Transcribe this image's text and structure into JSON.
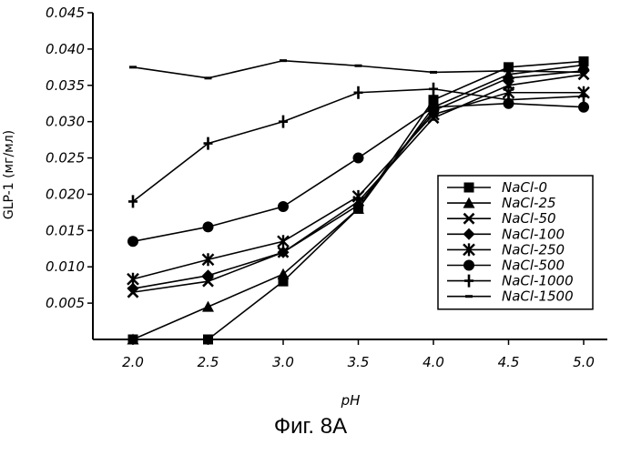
{
  "caption": "Фиг. 8A",
  "chart_data": {
    "type": "line",
    "xlabel": "pH",
    "ylabel": "GLP-1 (мг/мл)",
    "x": [
      2.0,
      2.5,
      3.0,
      3.5,
      4.0,
      4.5,
      5.0
    ],
    "x_tick_labels": [
      "2.0",
      "2.5",
      "3.0",
      "3.5",
      "4.0",
      "4.5",
      "5.0"
    ],
    "y_tick_labels": [
      "0.005",
      "0.010",
      "0.015",
      "0.020",
      "0.025",
      "0.030",
      "0.035",
      "0.040",
      "0.045"
    ],
    "ylim": [
      0,
      0.045
    ],
    "grid": false,
    "legend_position": "bottom-right",
    "series": [
      {
        "name": "NaCl-0",
        "marker": "square",
        "values": [
          0.0,
          0.0,
          0.008,
          0.018,
          0.033,
          0.0375,
          0.0383
        ]
      },
      {
        "name": "NaCl-25",
        "marker": "triangle",
        "values": [
          0.0,
          0.0045,
          0.009,
          0.018,
          0.032,
          0.0365,
          0.0378
        ]
      },
      {
        "name": "NaCl-50",
        "marker": "x",
        "values": [
          0.0065,
          0.008,
          0.012,
          0.019,
          0.0305,
          0.035,
          0.0365
        ]
      },
      {
        "name": "NaCl-100",
        "marker": "diamond",
        "values": [
          0.007,
          0.0088,
          0.012,
          0.0185,
          0.0315,
          0.036,
          0.037
        ]
      },
      {
        "name": "NaCl-250",
        "marker": "star",
        "values": [
          0.0083,
          0.011,
          0.0135,
          0.0197,
          0.031,
          0.034,
          0.034
        ]
      },
      {
        "name": "NaCl-500",
        "marker": "circle",
        "values": [
          0.0135,
          0.0155,
          0.0183,
          0.025,
          0.032,
          0.0325,
          0.032
        ]
      },
      {
        "name": "NaCl-1000",
        "marker": "plus",
        "values": [
          0.019,
          0.027,
          0.03,
          0.034,
          0.0345,
          0.033,
          0.0335
        ]
      },
      {
        "name": "NaCl-1500",
        "marker": "dash",
        "values": [
          0.0375,
          0.036,
          0.0384,
          0.0377,
          0.0368,
          0.037,
          0.0368
        ]
      }
    ]
  }
}
